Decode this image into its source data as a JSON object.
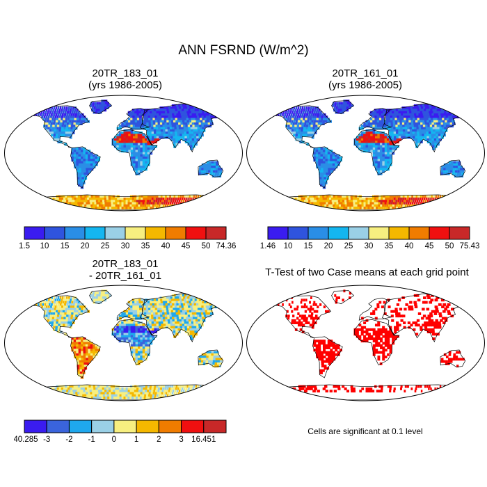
{
  "page": {
    "title": "ANN FSRND (W/m^2)",
    "note": "Cells are significant at 0.1 level"
  },
  "panels": {
    "p1": {
      "line1": "20TR_183_01",
      "line2": "(yrs 1986-2005)"
    },
    "p2": {
      "line1": "20TR_161_01",
      "line2": "(yrs 1986-2005)"
    },
    "p3": {
      "line1": "20TR_183_01",
      "line2": "- 20TR_161_01"
    },
    "p4": {
      "line1": "T-Test of two Case means at each grid point"
    }
  },
  "legends": {
    "leg1": {
      "labels": [
        "1.5",
        "10",
        "15",
        "20",
        "25",
        "30",
        "35",
        "40",
        "45",
        "50",
        "74.36"
      ],
      "colors": [
        "#3a1cf0",
        "#2f54de",
        "#2a8ee6",
        "#14b6f0",
        "#9ad0e6",
        "#f7ef80",
        "#f5b800",
        "#f07c00",
        "#f01010",
        "#c82828"
      ]
    },
    "leg2": {
      "labels": [
        "1.46",
        "10",
        "15",
        "20",
        "25",
        "30",
        "35",
        "40",
        "45",
        "50",
        "75.43"
      ],
      "colors": [
        "#3a1cf0",
        "#2f54de",
        "#2a8ee6",
        "#14b6f0",
        "#9ad0e6",
        "#f7ef80",
        "#f5b800",
        "#f07c00",
        "#f01010",
        "#c82828"
      ]
    },
    "leg3": {
      "labels": [
        "-40.285",
        "-3",
        "-2",
        "-1",
        "0",
        "1",
        "2",
        "3",
        "16.451"
      ],
      "colors": [
        "#3a1cf0",
        "#3a64dc",
        "#1fa8ee",
        "#9ad0e6",
        "#f7ef80",
        "#f5b800",
        "#f07c00",
        "#f01010",
        "#c82828"
      ]
    }
  }
}
